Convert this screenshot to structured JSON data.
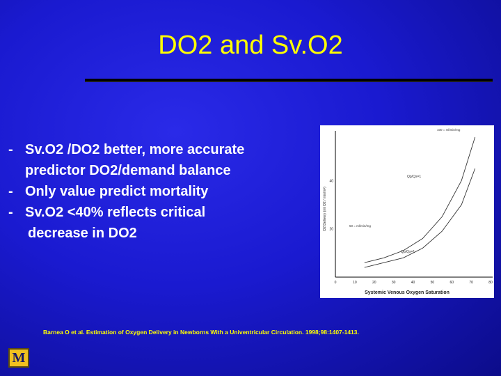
{
  "slide": {
    "title": "DO2 and Sv.O2",
    "bullets": [
      {
        "dash": "-",
        "line1": "Sv.O2 /DO2 better, more accurate",
        "line2": "predictor DO2/demand balance"
      },
      {
        "dash": "-",
        "line1": "Only value predict mortality",
        "line2": ""
      },
      {
        "dash": "-",
        "line1": "Sv.O2 <40% reflects critical",
        "line2": "decrease in DO2"
      }
    ],
    "citation": "Barnea O et al. Estimation of Oxygen Delivery in Newborns With a Univentricular Circulation. 1998;98:1407-1413.",
    "logo_letter": "M"
  },
  "chart_data": {
    "type": "line",
    "xlabel": "Systemic Venous Oxygen Saturation",
    "ylabel": "O2 Delivery (ml O2 / min/m²)",
    "x_ticks": [
      "0",
      "10",
      "20",
      "30",
      "40",
      "50",
      "60",
      "70",
      "80"
    ],
    "y_ticks": [
      "40",
      "20"
    ],
    "xlim": [
      0,
      80
    ],
    "ylim": [
      0,
      60
    ],
    "series_labels": [
      "Qp/Qs=1",
      "Qp/Qs=1",
      "100 = ml/min/mg",
      "50 = ml/min/mg"
    ],
    "series": [
      {
        "values_x": [
          15,
          25,
          35,
          45,
          55,
          65,
          72
        ],
        "values_y": [
          6,
          8,
          11,
          16,
          25,
          40,
          58
        ]
      },
      {
        "values_x": [
          15,
          25,
          35,
          45,
          55,
          65,
          72
        ],
        "values_y": [
          4,
          6,
          8,
          12,
          19,
          30,
          45
        ]
      }
    ],
    "colors": {
      "axis": "#000000",
      "line": "#333333"
    }
  }
}
